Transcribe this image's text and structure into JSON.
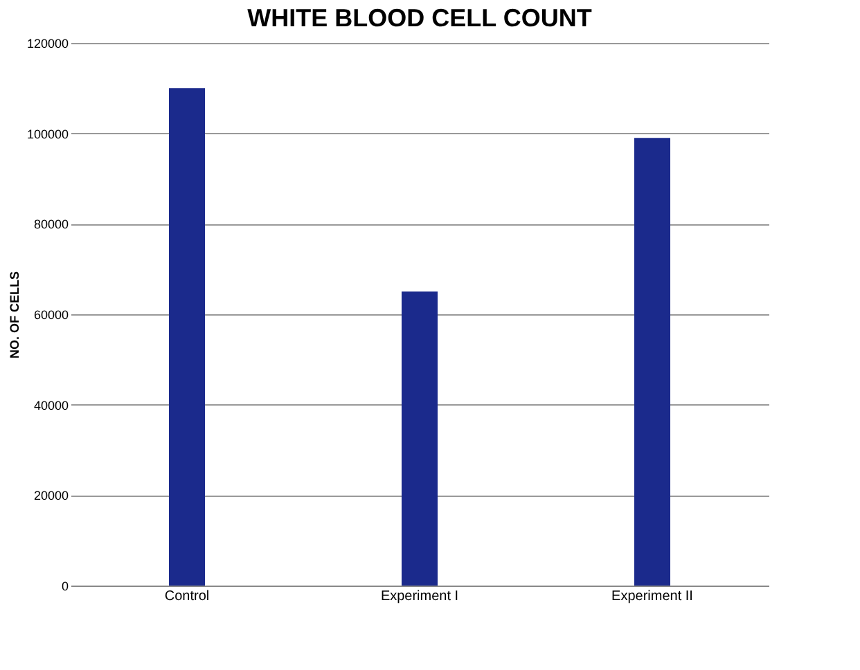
{
  "chart_data": {
    "type": "bar",
    "title": "WHITE BLOOD CELL COUNT",
    "ylabel": "NO. OF CELLS",
    "categories": [
      "Control",
      "Experiment I",
      "Experiment II"
    ],
    "values": [
      110000,
      65000,
      99000
    ],
    "color": "#1b2a8c",
    "ylim": [
      0,
      120000
    ],
    "yticks": [
      0,
      20000,
      40000,
      60000,
      80000,
      100000,
      120000
    ],
    "grid": "y"
  }
}
